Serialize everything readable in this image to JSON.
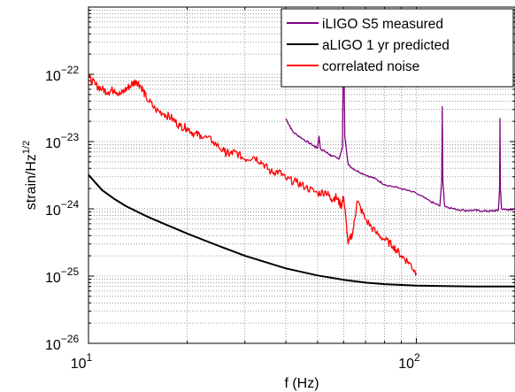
{
  "chart_data": {
    "type": "line",
    "title": "",
    "xlabel": "f (Hz)",
    "ylabel_base": "strain/Hz",
    "ylabel_exp": "1/2",
    "xscale": "log",
    "yscale": "log",
    "xlim": [
      10,
      200
    ],
    "ylim": [
      1e-26,
      1e-21
    ],
    "grid": true,
    "legend_position": "top-right",
    "x_ticks": [
      {
        "value": 10,
        "base": "10",
        "exp": "1"
      },
      {
        "value": 100,
        "base": "10",
        "exp": "2"
      }
    ],
    "y_ticks": [
      {
        "value": 1e-26,
        "base": "10",
        "exp": "−26"
      },
      {
        "value": 1e-25,
        "base": "10",
        "exp": "−25"
      },
      {
        "value": 1e-24,
        "base": "10",
        "exp": "−24"
      },
      {
        "value": 1e-23,
        "base": "10",
        "exp": "−23"
      },
      {
        "value": 1e-22,
        "base": "10",
        "exp": "−22"
      }
    ],
    "series": [
      {
        "name": "iLIGO S5 measured",
        "color": "#800080",
        "x": [
          40,
          42,
          45,
          48,
          50,
          50.5,
          51,
          53,
          55,
          58,
          59.5,
          60,
          60.5,
          62,
          65,
          70,
          75,
          80,
          90,
          100,
          110,
          118,
          119.5,
          120,
          120.5,
          122,
          130,
          140,
          150,
          160,
          170,
          178,
          179.5,
          180,
          180.5,
          182,
          190,
          200
        ],
        "y": [
          2.2e-23,
          1.4e-23,
          1.1e-23,
          9e-24,
          8e-24,
          1.2e-23,
          7.8e-24,
          7e-24,
          6.2e-24,
          5.5e-24,
          8e-24,
          5.5e-22,
          1.2e-23,
          4.5e-24,
          3.8e-24,
          3.2e-24,
          2.8e-24,
          2.3e-24,
          2e-24,
          1.7e-24,
          1.3e-24,
          1.1e-24,
          2.5e-24,
          3.3e-23,
          2.5e-24,
          1.1e-24,
          1e-24,
          9.5e-25,
          9.5e-25,
          9.3e-25,
          9.3e-25,
          9.5e-25,
          2e-24,
          2.2e-23,
          2e-24,
          1e-24,
          9.8e-25,
          1e-24
        ]
      },
      {
        "name": "aLIGO 1 yr predicted",
        "color": "#000000",
        "x": [
          10,
          11,
          12,
          13,
          15,
          17,
          20,
          25,
          30,
          40,
          50,
          60,
          70,
          80,
          100,
          120,
          150,
          200
        ],
        "y": [
          3.2e-24,
          1.9e-24,
          1.4e-24,
          1.1e-24,
          7.8e-25,
          6e-25,
          4.3e-25,
          2.8e-25,
          2e-25,
          1.3e-25,
          1.02e-25,
          8.8e-26,
          8e-26,
          7.6e-26,
          7.2e-26,
          7.1e-26,
          7e-26,
          7e-26
        ]
      },
      {
        "name": "correlated noise",
        "color": "#ff0000",
        "x": [
          10,
          10.5,
          11,
          11.5,
          12,
          12.5,
          13,
          13.5,
          14,
          14.5,
          15,
          16,
          17,
          18,
          19,
          20,
          21,
          22,
          24,
          26,
          27,
          28,
          30,
          32,
          34,
          36,
          38,
          40,
          43,
          46,
          50,
          53,
          55,
          57,
          59,
          60,
          62,
          64,
          66,
          70,
          75,
          80,
          85,
          90,
          95,
          100
        ],
        "y": [
          9e-23,
          7e-23,
          6e-23,
          5.5e-23,
          6e-23,
          5e-23,
          6e-23,
          7e-23,
          8e-23,
          6.5e-23,
          4.5e-23,
          3e-23,
          2.6e-23,
          2.2e-23,
          1.7e-23,
          1.6e-23,
          1.3e-23,
          1.25e-23,
          1e-23,
          7e-24,
          6.5e-24,
          7e-24,
          5.5e-24,
          6e-24,
          4.8e-24,
          3.5e-24,
          3.6e-24,
          2.8e-24,
          2.5e-24,
          2.1e-24,
          1.7e-24,
          1.8e-24,
          1.4e-24,
          1.5e-24,
          1.1e-24,
          1.5e-24,
          3e-25,
          4.5e-25,
          1.3e-24,
          7e-25,
          4.5e-25,
          3.5e-25,
          2.8e-25,
          2e-25,
          1.6e-25,
          1.1e-25
        ]
      }
    ]
  }
}
